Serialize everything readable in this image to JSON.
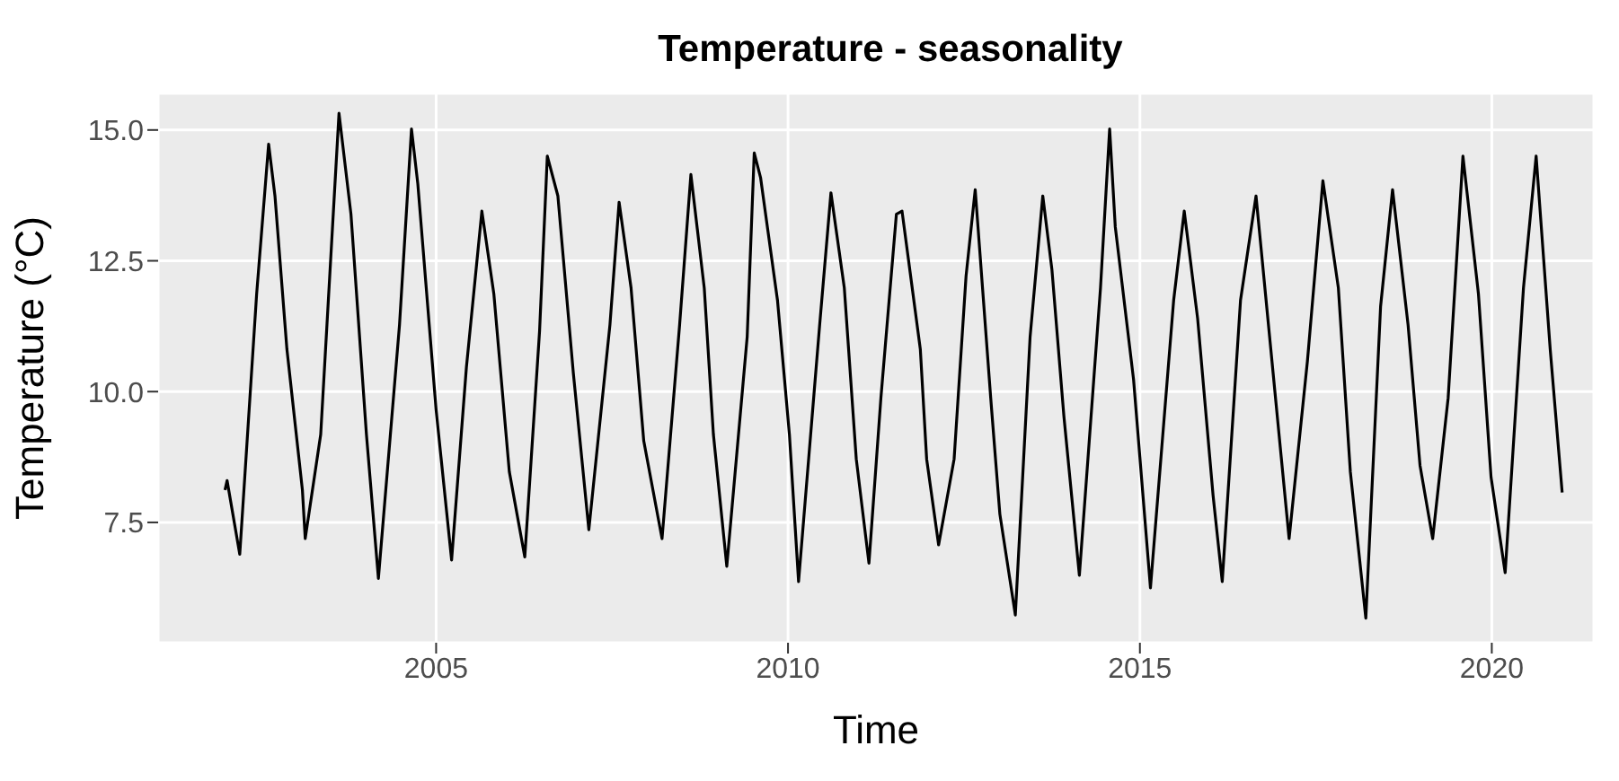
{
  "chart_data": {
    "type": "line",
    "title": "Temperature - seasonality",
    "xlabel": "Time",
    "ylabel": "Temperature (°C)",
    "xlim": [
      2001.05,
      2021.45
    ],
    "ylim": [
      5.2,
      15.7
    ],
    "xticks": [
      2005,
      2010,
      2015,
      2020
    ],
    "yticks": [
      {
        "value": 7.5,
        "label": "7.5"
      },
      {
        "value": 10,
        "label": "10.0"
      },
      {
        "value": 12.5,
        "label": "12.5"
      },
      {
        "value": 15,
        "label": "15.0"
      }
    ],
    "grid": true,
    "legend": false,
    "line_style": "solid",
    "marker": "none",
    "series": [
      {
        "color": "#000000",
        "x": [
          2002.0,
          2002.03,
          2002.21,
          2002.45,
          2002.62,
          2002.71,
          2002.88,
          2003.1,
          2003.14,
          2003.36,
          2003.62,
          2003.79,
          2004.01,
          2004.18,
          2004.48,
          2004.65,
          2004.74,
          2005.0,
          2005.22,
          2005.43,
          2005.65,
          2005.82,
          2006.04,
          2006.26,
          2006.47,
          2006.58,
          2006.73,
          2006.95,
          2007.17,
          2007.47,
          2007.6,
          2007.77,
          2007.95,
          2008.21,
          2008.46,
          2008.62,
          2008.81,
          2008.94,
          2009.13,
          2009.42,
          2009.52,
          2009.61,
          2009.85,
          2010.02,
          2010.15,
          2010.45,
          2010.61,
          2010.8,
          2010.97,
          2011.15,
          2011.32,
          2011.54,
          2011.62,
          2011.88,
          2011.97,
          2012.14,
          2012.36,
          2012.53,
          2012.66,
          2012.88,
          2013.01,
          2013.23,
          2013.44,
          2013.62,
          2013.75,
          2013.92,
          2014.14,
          2014.44,
          2014.57,
          2014.65,
          2014.91,
          2015.15,
          2015.48,
          2015.63,
          2015.82,
          2016.04,
          2016.17,
          2016.43,
          2016.65,
          2016.86,
          2017.12,
          2017.38,
          2017.6,
          2017.82,
          2017.99,
          2018.21,
          2018.42,
          2018.59,
          2018.81,
          2018.98,
          2019.16,
          2019.38,
          2019.59,
          2019.81,
          2019.99,
          2020.19,
          2020.45,
          2020.63,
          2020.83,
          2021.0
        ],
        "values": [
          8.12,
          8.3,
          6.89,
          11.87,
          14.73,
          13.74,
          10.81,
          8.12,
          7.19,
          9.18,
          15.32,
          13.39,
          9.18,
          6.43,
          11.28,
          15.02,
          13.97,
          9.65,
          6.78,
          10.46,
          13.45,
          11.87,
          8.47,
          6.84,
          11.16,
          14.5,
          13.74,
          10.35,
          7.36,
          11.28,
          13.62,
          11.98,
          9.06,
          7.19,
          11.28,
          14.15,
          11.98,
          9.18,
          6.66,
          11.05,
          14.56,
          14.09,
          11.75,
          9.18,
          6.37,
          11.28,
          13.8,
          11.98,
          8.71,
          6.72,
          9.88,
          13.39,
          13.45,
          10.81,
          8.71,
          7.07,
          8.71,
          12.21,
          13.86,
          9.88,
          7.66,
          5.73,
          11.05,
          13.74,
          12.33,
          9.53,
          6.49,
          11.98,
          15.02,
          13.15,
          10.23,
          6.25,
          11.75,
          13.45,
          11.4,
          8.01,
          6.37,
          11.75,
          13.74,
          10.81,
          7.19,
          10.58,
          14.03,
          11.98,
          8.47,
          5.67,
          11.63,
          13.86,
          11.28,
          8.59,
          7.19,
          9.88,
          14.5,
          11.87,
          8.36,
          6.54,
          11.98,
          14.5,
          10.81,
          8.07
        ]
      }
    ]
  }
}
